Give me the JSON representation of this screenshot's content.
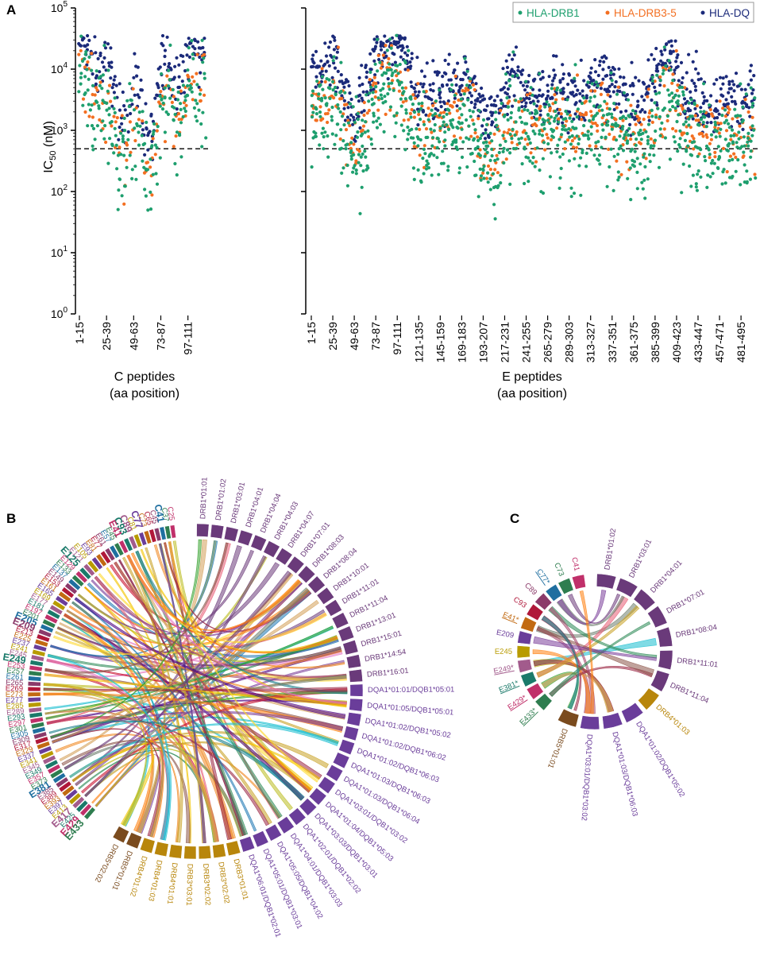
{
  "chart_data": [
    {
      "panel": "A",
      "type": "scatter",
      "title": "",
      "ylabel": "IC50 (nM)",
      "yscale": "log",
      "ylim": [
        1,
        100000
      ],
      "ytick_labels": [
        "10^0",
        "10^1",
        "10^2",
        "10^3",
        "10^4",
        "10^5"
      ],
      "threshold": 500,
      "legend": [
        "HLA-DRB1",
        "HLA-DRB3-5",
        "HLA-DQ"
      ],
      "legend_placement": "top-right",
      "colors": {
        "HLA-DRB1": "#1e9f6e",
        "HLA-DRB3-5": "#f36f21",
        "HLA-DQ": "#1b2a7a"
      },
      "subplots": [
        {
          "id": "C",
          "xlabel_line1": "C peptides",
          "xlabel_line2": "(aa position)",
          "tick_labels": [
            "1-15",
            "25-39",
            "49-63",
            "73-87",
            "97-111"
          ],
          "n_peptides": 112,
          "profile_log10_median": [
            4.3,
            3.9,
            3.6,
            3.3,
            3.6,
            3.4,
            3.0,
            2.6,
            2.9,
            3.3,
            3.1,
            2.5,
            2.4,
            2.9,
            3.5,
            3.6,
            3.2,
            3.3,
            3.8,
            3.9,
            3.6,
            3.7
          ]
        },
        {
          "id": "E",
          "xlabel_line1": "E peptides",
          "xlabel_line2": "(aa position)",
          "tick_labels": [
            "1-15",
            "25-39",
            "49-63",
            "73-87",
            "97-111",
            "121-135",
            "145-159",
            "169-183",
            "193-207",
            "217-231",
            "241-255",
            "265-279",
            "289-303",
            "313-327",
            "337-351",
            "361-375",
            "385-399",
            "409-423",
            "433-447",
            "457-471",
            "481-495"
          ],
          "n_peptides": 496,
          "profile_log10_median": [
            3.4,
            3.6,
            2.6,
            3.8,
            3.9,
            3.0,
            3.1,
            3.4,
            2.5,
            3.3,
            3.0,
            3.1,
            3.0,
            3.3,
            3.0,
            2.9,
            3.7,
            3.1,
            2.9,
            3.0,
            3.0
          ]
        }
      ]
    },
    {
      "panel": "B",
      "type": "chord",
      "allele_labels": [
        "DRB1*01:01",
        "DRB1*01:02",
        "DRB1*03:01",
        "DRB1*04:01",
        "DRB1*04:04",
        "DRB1*04:03",
        "DRB1*04:07",
        "DRB1*07:01",
        "DRB1*08:03",
        "DRB1*08:04",
        "DRB1*10:01",
        "DRB1*11:01",
        "DRB1*11:04",
        "DRB1*13:01",
        "DRB1*15:01",
        "DRB1*14:54",
        "DRB1*16:01",
        "DQA1*01:01/DQB1*05:01",
        "DQA1*01:05/DQB1*05:01",
        "DQA1*01:02/DQB1*05:02",
        "DQA1*01:02/DQB1*06:02",
        "DQA1*01:02/DQB1*06:03",
        "DQA1*01:03/DQB1*06:03",
        "DQA1*01:03/DQB1*06:04",
        "DQA1*03:01/DQB1*03:02",
        "DQA1*01:04/DQB1*05:03",
        "DQA1*03:03/DQB1*03:01",
        "DQA1*02:01/DQB1*02:02",
        "DQA1*04:01/DQB1*03:03",
        "DQA1*05:05/DQB1*04:02",
        "DQA1*05:01/DQB1*03:01",
        "DQA1*06:01/DQB1*02:01",
        "DRB3*01:01",
        "DRB3*02:02",
        "DRB3*02:02",
        "DRB3*03:01",
        "DRB4*01:01",
        "DRB4*01:03",
        "DRB4*01:02",
        "DRB5*01:01",
        "DRB5*02:02"
      ],
      "peptide_labels": [
        "C25",
        "C37",
        "C41",
        "C45",
        "C65",
        "C73",
        "C77",
        "C81",
        "C89",
        "C93",
        "E41",
        "E45",
        "E57",
        "E61",
        "E77",
        "E81",
        "E93",
        "E105",
        "E121",
        "E125",
        "E129",
        "E133",
        "E137",
        "E149",
        "E153",
        "E161",
        "E165",
        "E169",
        "E177",
        "E181",
        "E197",
        "E201",
        "E205",
        "E209",
        "E213",
        "E225",
        "E237",
        "E241",
        "E245",
        "E249",
        "E253",
        "E257",
        "E261",
        "E265",
        "E269",
        "E273",
        "E277",
        "E285",
        "E289",
        "E293",
        "E297",
        "E301",
        "E305",
        "E309",
        "E317",
        "E329",
        "E337",
        "E341",
        "E345",
        "E349",
        "E357",
        "E373",
        "E381",
        "E385",
        "E389",
        "E393",
        "E397",
        "E413",
        "E417",
        "E425",
        "E429",
        "E433"
      ],
      "link_count": 126
    },
    {
      "panel": "C",
      "type": "chord",
      "allele_labels": [
        "DRB1*01:02",
        "DRB1*03:01",
        "DRB1*04:01",
        "DRB1*07:01",
        "DRB1*08:04",
        "DRB1*11:01",
        "DRB1*11:04",
        "DRB4*01:03",
        "DQA1*01:02/DQB1*05:02",
        "DQA1*01:03/DQB1*06:03",
        "DQA1*03:01/DQB1*03:02",
        "DRB5*01:01"
      ],
      "peptide_labels": [
        "C41",
        "C73",
        "C77*",
        "C89",
        "C93",
        "E41*",
        "E209",
        "E245",
        "E249*",
        "E381*",
        "E429*",
        "E433*"
      ],
      "link_count": 22
    }
  ],
  "panel_letters": {
    "a": "A",
    "b": "B",
    "c": "C"
  }
}
